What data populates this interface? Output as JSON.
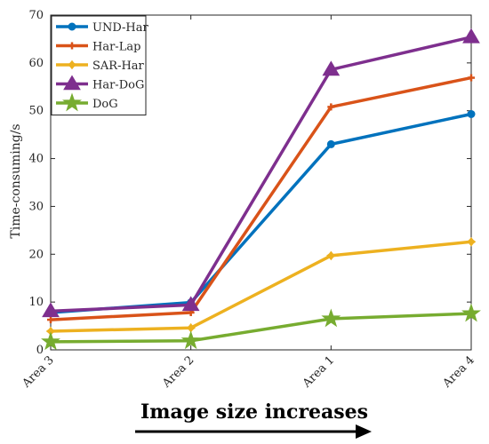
{
  "chart_data": {
    "type": "line",
    "categories": [
      "Area 3",
      "Area 2",
      "Area 1",
      "Area 4"
    ],
    "series": [
      {
        "name": "UND-Har",
        "values": [
          7.8,
          9.9,
          43.0,
          49.3
        ],
        "color": "#0072BD",
        "marker": "circle"
      },
      {
        "name": "Har-Lap",
        "values": [
          6.3,
          7.8,
          50.8,
          56.9
        ],
        "color": "#D95319",
        "marker": "plus"
      },
      {
        "name": "SAR-Har",
        "values": [
          3.9,
          4.6,
          19.7,
          22.6
        ],
        "color": "#EDB120",
        "marker": "star"
      },
      {
        "name": "Har-DoG",
        "values": [
          8.1,
          9.4,
          58.6,
          65.4
        ],
        "color": "#7E2F8E",
        "marker": "triangle"
      },
      {
        "name": "DoG",
        "values": [
          1.7,
          1.9,
          6.5,
          7.6
        ],
        "color": "#77AC30",
        "marker": "pentagram"
      }
    ],
    "ylabel": "Time-consuming/s",
    "xlabel": "Image size increases",
    "ylim": [
      0,
      70
    ],
    "yticks": [
      0,
      10,
      20,
      30,
      40,
      50,
      60,
      70
    ],
    "grid": false,
    "legend_position": "top-left"
  }
}
